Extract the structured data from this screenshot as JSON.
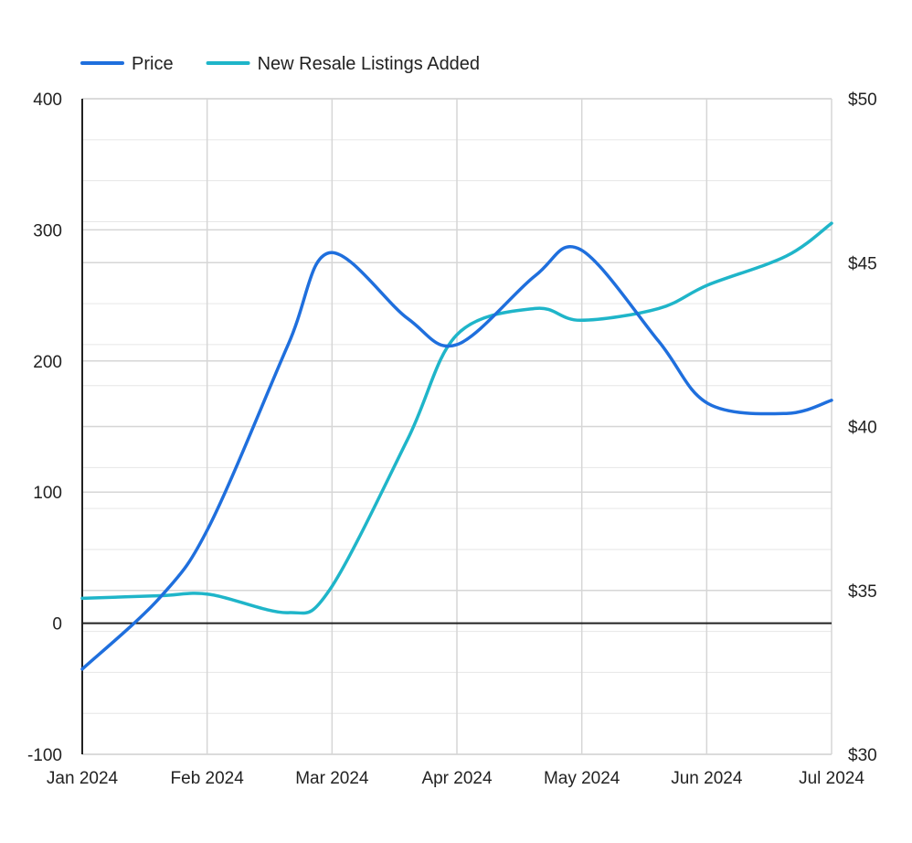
{
  "chart_data": {
    "type": "line",
    "x": [
      "Jan 2024",
      "Feb 2024",
      "Mar 2024",
      "Apr 2024",
      "May 2024",
      "Jun 2024",
      "Jul 2024"
    ],
    "legend": {
      "position": "top-left"
    },
    "grid": true,
    "y_left": {
      "ticks": [
        "400",
        "300",
        "200",
        "100",
        "0",
        "-100"
      ],
      "range": [
        -100,
        400
      ]
    },
    "y_right": {
      "ticks": [
        "$50",
        "$45",
        "$40",
        "$35",
        "$30"
      ],
      "range": [
        30,
        50
      ]
    },
    "series": [
      {
        "name": "Price",
        "axis": "right",
        "color": "#1f6fdd",
        "points": [
          [
            "2024-01-01",
            32.6
          ],
          [
            "2024-01-20",
            34.8
          ],
          [
            "2024-02-01",
            37.0
          ],
          [
            "2024-02-20",
            42.5
          ],
          [
            "2024-03-01",
            45.3
          ],
          [
            "2024-03-20",
            43.3
          ],
          [
            "2024-04-01",
            42.5
          ],
          [
            "2024-04-20",
            44.6
          ],
          [
            "2024-05-01",
            45.4
          ],
          [
            "2024-05-20",
            42.6
          ],
          [
            "2024-06-01",
            40.7
          ],
          [
            "2024-06-20",
            40.4
          ],
          [
            "2024-07-01",
            40.8
          ]
        ]
      },
      {
        "name": "New Resale Listings Added",
        "axis": "left",
        "color": "#1fb5c9",
        "points": [
          [
            "2024-01-01",
            19
          ],
          [
            "2024-01-20",
            21
          ],
          [
            "2024-02-01",
            22
          ],
          [
            "2024-02-20",
            8
          ],
          [
            "2024-03-01",
            25
          ],
          [
            "2024-03-20",
            140
          ],
          [
            "2024-04-01",
            220
          ],
          [
            "2024-04-20",
            240
          ],
          [
            "2024-05-01",
            231
          ],
          [
            "2024-05-20",
            240
          ],
          [
            "2024-06-01",
            258
          ],
          [
            "2024-06-20",
            280
          ],
          [
            "2024-07-01",
            305
          ]
        ]
      }
    ]
  }
}
